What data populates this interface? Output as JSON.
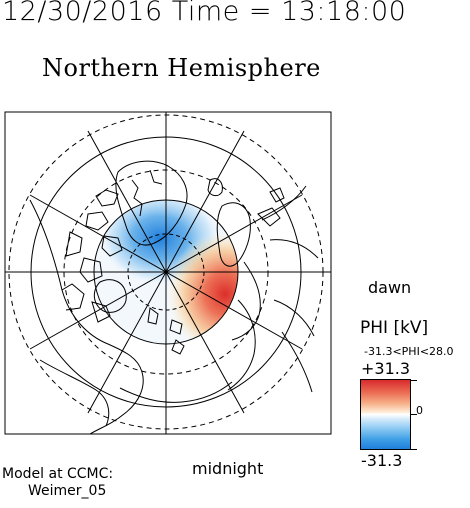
{
  "header": {
    "datetime": "12/30/2016 Time = 13:18:00",
    "title": "Northern Hemisphere"
  },
  "labels": {
    "dawn": "dawn",
    "midnight": "midnight"
  },
  "credit": {
    "line1": "Model at CCMC:",
    "line2": "Weimer_05"
  },
  "colorbar": {
    "title": "PHI [kV]",
    "range_text": "-31.3<PHI<28.0",
    "max_label": "+31.3",
    "min_label": "-31.3",
    "zero_label": "0",
    "colors": {
      "positive": "#d92a2e",
      "negative": "#1f7fdc",
      "zero": "#ffffff"
    }
  }
}
